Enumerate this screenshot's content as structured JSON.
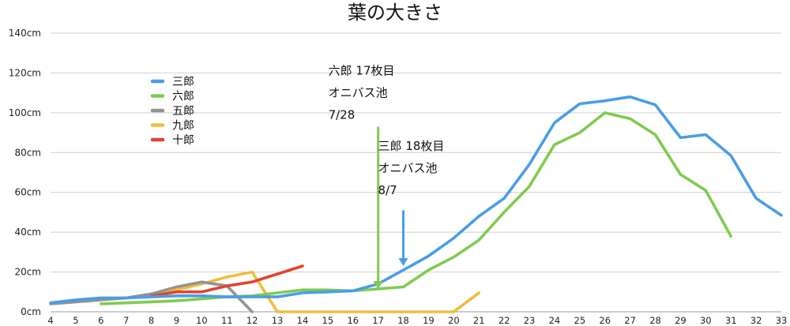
{
  "chart_data": {
    "type": "line",
    "title": "葉の大きさ",
    "xlabel": "",
    "ylabel": "",
    "x": [
      4,
      5,
      6,
      7,
      8,
      9,
      10,
      11,
      12,
      13,
      14,
      15,
      16,
      17,
      18,
      19,
      20,
      21,
      22,
      23,
      24,
      25,
      26,
      27,
      28,
      29,
      30,
      31,
      32,
      33
    ],
    "x_tick_labels": [
      "4",
      "5",
      "6",
      "7",
      "8",
      "9",
      "10",
      "11",
      "12",
      "13",
      "14",
      "15",
      "16",
      "17",
      "18",
      "19",
      "20",
      "21",
      "22",
      "23",
      "24",
      "25",
      "26",
      "27",
      "28",
      "29",
      "30",
      "31",
      "32",
      "33"
    ],
    "xlim": [
      4,
      33
    ],
    "ylim": [
      0,
      140
    ],
    "y_ticks": [
      0,
      20,
      40,
      60,
      80,
      100,
      120,
      140
    ],
    "y_tick_labels": [
      "0cm",
      "20cm",
      "40cm",
      "60cm",
      "80cm",
      "100cm",
      "120cm",
      "140cm"
    ],
    "grid": true,
    "legend_position": "upper-left",
    "series": [
      {
        "name": "三郎",
        "color": "#4a9de6",
        "points": [
          [
            4,
            4.5
          ],
          [
            5,
            6
          ],
          [
            6,
            7
          ],
          [
            7,
            7
          ],
          [
            8,
            7.5
          ],
          [
            9,
            8
          ],
          [
            10,
            8
          ],
          [
            11,
            7.5
          ],
          [
            12,
            7.5
          ],
          [
            13,
            7.5
          ],
          [
            14,
            9.5
          ],
          [
            15,
            10
          ],
          [
            16,
            10.5
          ],
          [
            17,
            14
          ],
          [
            18,
            21
          ],
          [
            19,
            28
          ],
          [
            20,
            37
          ],
          [
            21,
            48
          ],
          [
            22,
            57
          ],
          [
            23,
            74
          ],
          [
            24,
            95
          ],
          [
            25,
            104.5
          ],
          [
            26,
            106
          ],
          [
            27,
            108
          ],
          [
            28,
            104
          ],
          [
            29,
            87.5
          ],
          [
            30,
            89
          ],
          [
            31,
            78.5
          ],
          [
            32,
            57
          ],
          [
            33,
            48.5
          ]
        ]
      },
      {
        "name": "六郎",
        "color": "#7fcb4e",
        "points": [
          [
            6,
            4
          ],
          [
            7,
            4.5
          ],
          [
            8,
            5
          ],
          [
            9,
            5.5
          ],
          [
            10,
            6.5
          ],
          [
            11,
            7.5
          ],
          [
            12,
            8
          ],
          [
            13,
            9.5
          ],
          [
            14,
            11
          ],
          [
            15,
            11
          ],
          [
            16,
            10.5
          ],
          [
            17,
            11.5
          ],
          [
            18,
            12.5
          ],
          [
            19,
            21
          ],
          [
            20,
            27.5
          ],
          [
            21,
            36
          ],
          [
            22,
            50
          ],
          [
            23,
            63
          ],
          [
            24,
            84
          ],
          [
            25,
            90
          ],
          [
            26,
            100
          ],
          [
            27,
            97
          ],
          [
            28,
            89
          ],
          [
            29,
            69
          ],
          [
            30,
            61
          ],
          [
            31,
            38
          ]
        ]
      },
      {
        "name": "五郎",
        "color": "#939393",
        "points": [
          [
            4,
            4
          ],
          [
            5,
            5
          ],
          [
            6,
            6
          ],
          [
            7,
            7
          ],
          [
            8,
            9
          ],
          [
            9,
            12.5
          ],
          [
            10,
            15
          ],
          [
            11,
            13
          ],
          [
            12,
            0
          ]
        ]
      },
      {
        "name": "九郎",
        "color": "#f2bd3c",
        "points": [
          [
            4,
            4
          ],
          [
            5,
            5
          ],
          [
            6,
            6
          ],
          [
            7,
            7
          ],
          [
            8,
            8
          ],
          [
            9,
            11
          ],
          [
            10,
            14
          ],
          [
            11,
            17.5
          ],
          [
            12,
            20
          ],
          [
            13,
            0
          ],
          [
            14,
            0
          ],
          [
            15,
            0
          ],
          [
            16,
            0
          ],
          [
            17,
            0
          ],
          [
            18,
            0
          ],
          [
            19,
            0
          ],
          [
            20,
            0
          ],
          [
            21,
            9.5
          ]
        ]
      },
      {
        "name": "十郎",
        "color": "#e2432f",
        "points": [
          [
            8,
            8
          ],
          [
            9,
            10
          ],
          [
            10,
            10
          ],
          [
            11,
            13
          ],
          [
            12,
            15
          ],
          [
            13,
            19
          ],
          [
            14,
            23
          ]
        ]
      }
    ],
    "annotations": [
      {
        "lines": [
          "六郎 17枚目",
          "オニバス池",
          "7/28"
        ],
        "color": "#7fcb4e",
        "arrow_x": 17,
        "arrow_y_top": 93,
        "arrow_y_tip": 11.5,
        "text_x": 17,
        "text_y": 120
      },
      {
        "lines": [
          "三郎 18枚目",
          "オニバス池",
          "8/7"
        ],
        "color": "#4a9de6",
        "arrow_x": 18,
        "arrow_y_top": 51,
        "arrow_y_tip": 23,
        "text_x": 18,
        "text_y": 82
      }
    ]
  }
}
